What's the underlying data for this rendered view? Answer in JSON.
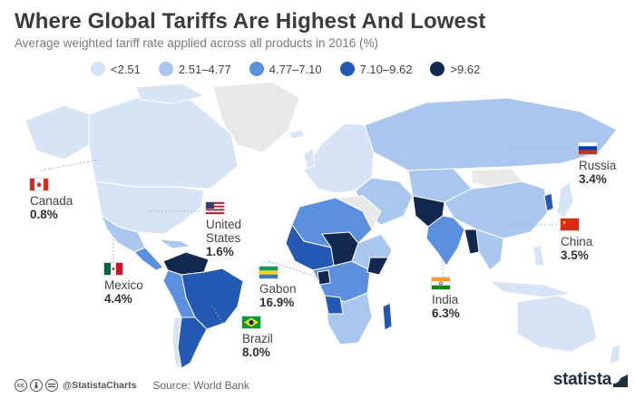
{
  "title": "Where Global Tariffs Are Highest And Lowest",
  "subtitle": "Average weighted tariff rate applied across all products in 2016 (%)",
  "legend": [
    {
      "label": "<2.51",
      "color": "#d6e4f5"
    },
    {
      "label": "2.51–4.77",
      "color": "#a8c6ee"
    },
    {
      "label": "4.77–7.10",
      "color": "#5b90df"
    },
    {
      "label": "7.10–9.62",
      "color": "#2459b3"
    },
    {
      "label": ">9.62",
      "color": "#13284f"
    }
  ],
  "colors": {
    "no_data": "#e8e8e8",
    "ocean": "#ffffff",
    "brand": "#1f2d3d"
  },
  "countries": {
    "canada": {
      "name": "Canada",
      "value": "0.8%",
      "flag_icon": "canada-flag-icon"
    },
    "usa": {
      "name_line1": "United",
      "name_line2": "States",
      "value": "1.6%",
      "flag_icon": "usa-flag-icon"
    },
    "mexico": {
      "name": "Mexico",
      "value": "4.4%",
      "flag_icon": "mexico-flag-icon"
    },
    "gabon": {
      "name": "Gabon",
      "value": "16.9%",
      "flag_icon": "gabon-flag-icon"
    },
    "brazil": {
      "name": "Brazil",
      "value": "8.0%",
      "flag_icon": "brazil-flag-icon"
    },
    "russia": {
      "name": "Russia",
      "value": "3.4%",
      "flag_icon": "russia-flag-icon"
    },
    "china": {
      "name": "China",
      "value": "3.5%",
      "flag_icon": "china-flag-icon"
    },
    "india": {
      "name": "India",
      "value": "6.3%",
      "flag_icon": "india-flag-icon"
    }
  },
  "footer": {
    "license_icons": [
      "cc-icon",
      "by-icon",
      "nd-icon"
    ],
    "handle": "@StatistaCharts",
    "source": "Source: World Bank",
    "brand": "statista"
  }
}
